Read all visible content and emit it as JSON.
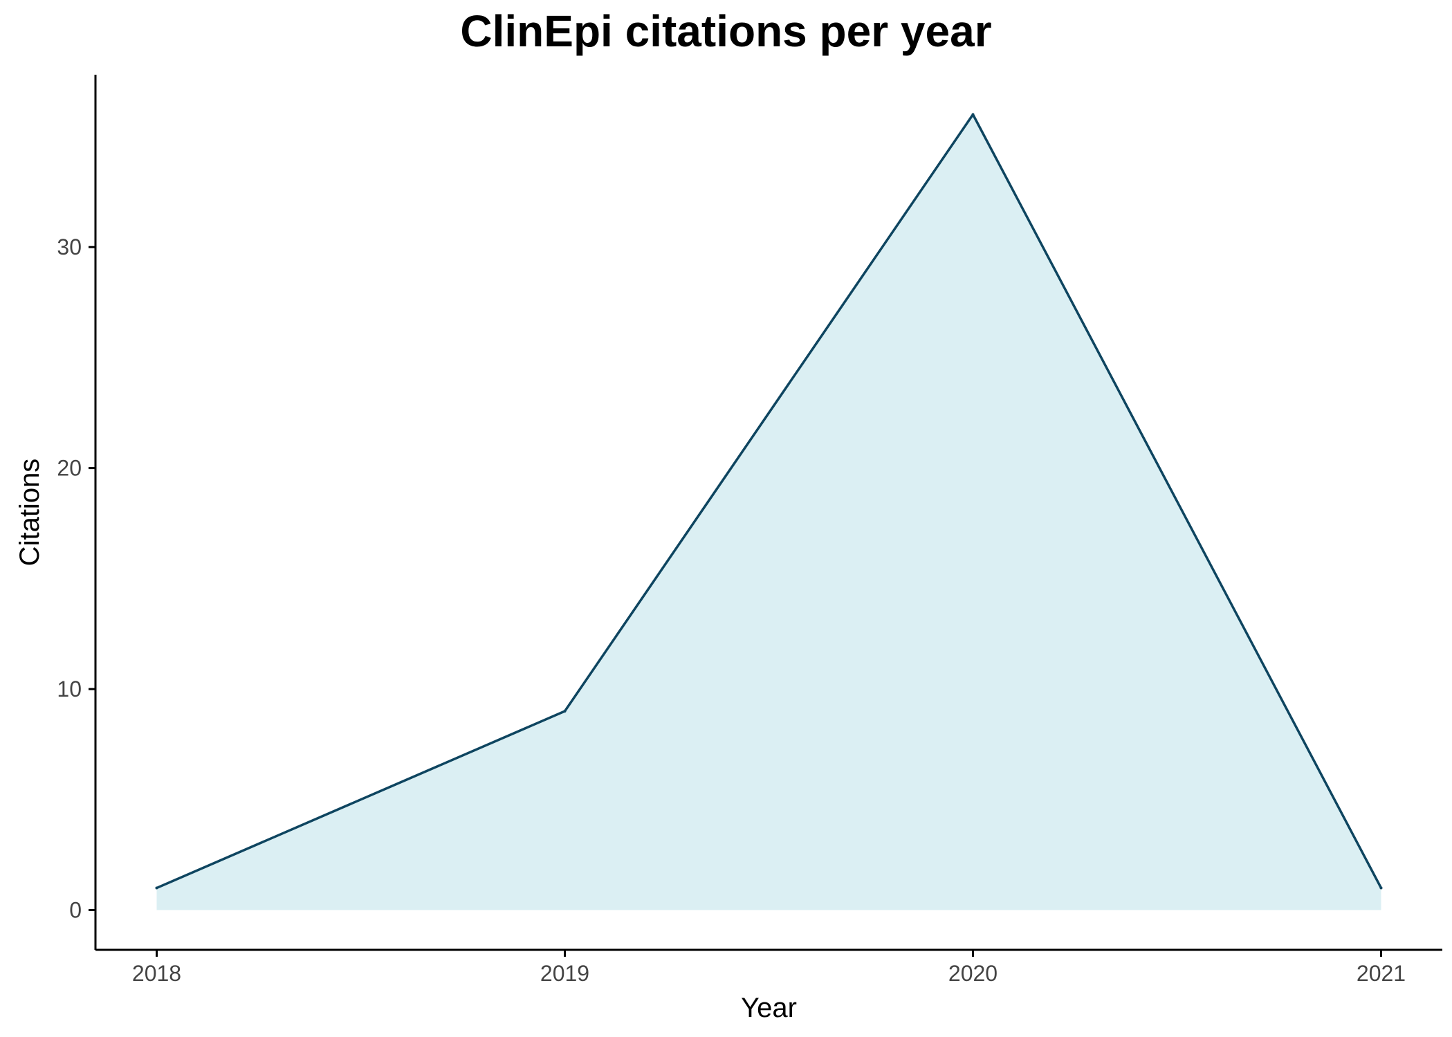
{
  "chart_data": {
    "type": "area",
    "title": "ClinEpi citations per year",
    "xlabel": "Year",
    "ylabel": "Citations",
    "x": [
      "2018",
      "2019",
      "2020",
      "2021"
    ],
    "series": [
      {
        "values": [
          1,
          9,
          36,
          1
        ]
      }
    ],
    "yticks": [
      0,
      10,
      20,
      30
    ],
    "ylim": [
      -1.8,
      37.8
    ],
    "xlim": [
      2017.85,
      2021.15
    ],
    "grid": false,
    "legend": "none",
    "colors": {
      "line": "#0e4560",
      "fill": "#dbeff3",
      "axis": "#000000"
    }
  }
}
